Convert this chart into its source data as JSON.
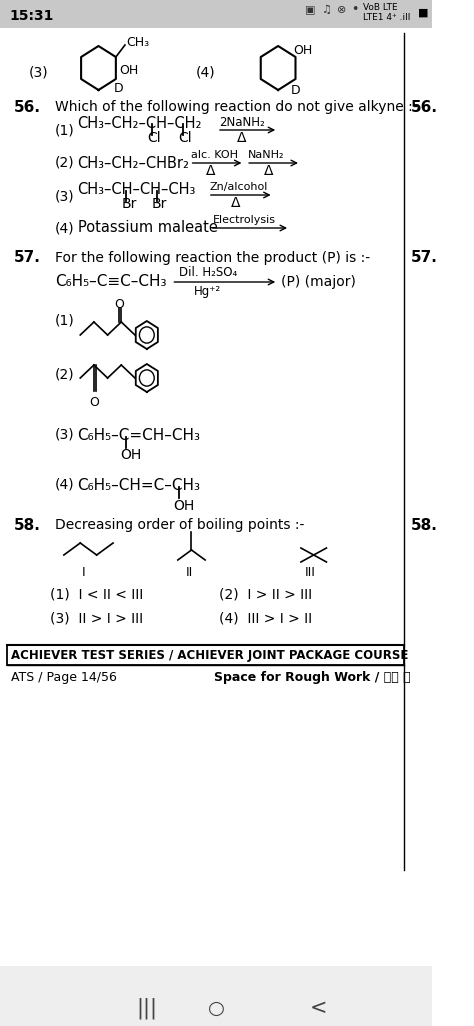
{
  "bg_color": "#ffffff",
  "status_bar_bg": "#d0d0d0",
  "status_bar_text": "15:31",
  "footer_text1": "ACHIEVER TEST SERIES / ACHIEVER JOINT PACKAGE COURSE",
  "footer_text2": "ATS / Page 14/56",
  "footer_text3": "Space for Rough Work / रफ क",
  "q56_text": "Which of the following reaction do not give alkyne :-",
  "q57_text": "For the following reaction the product (P) is :-",
  "q58_text": "Decreasing order of boiling points :-",
  "reaction57": "C₆H₅–C≡C–CH₃",
  "reaction57_above": "Dil. H₂SO₄",
  "reaction57_below": "Hg⁺²",
  "reaction57_product": "(P) (major)",
  "opt3_q57": "C₆H₅–C=CH–CH₃",
  "opt4_q57": "C₆H₅–CH=C–CH₃"
}
